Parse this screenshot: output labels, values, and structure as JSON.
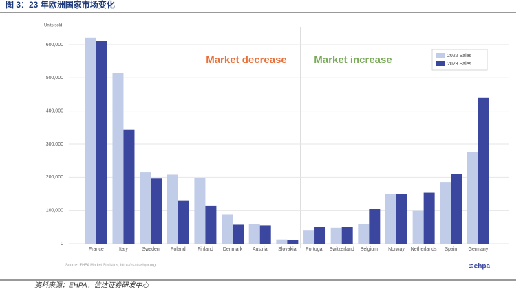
{
  "header": "图 3：23 年欧洲国家市场变化",
  "footer": "资料来源：EHPA，信达证券研发中心",
  "chart_data": {
    "type": "bar",
    "y_label": "Units sold",
    "annotations": [
      "Market decrease",
      "Market increase"
    ],
    "source": "Source: EHPA Market Statistics, https://stats.ehpa.org.",
    "logo": "≋ehpa",
    "categories": [
      "France",
      "Italy",
      "Sweden",
      "Poland",
      "Finland",
      "Denmark",
      "Austria",
      "Slovakia",
      "Portugal",
      "Switzerland",
      "Belgium",
      "Norway",
      "Netherlands",
      "Spain",
      "Germany"
    ],
    "series": [
      {
        "name": "2022 Sales",
        "color": "#c1cde8",
        "values": [
          621000,
          514000,
          215000,
          208000,
          197000,
          88000,
          60000,
          13000,
          41000,
          48000,
          60000,
          150000,
          100000,
          186000,
          276000
        ]
      },
      {
        "name": "2023 Sales",
        "color": "#3b479f",
        "values": [
          611000,
          344000,
          196000,
          129000,
          114000,
          57000,
          55000,
          12000,
          50000,
          51000,
          104000,
          151000,
          154000,
          210000,
          439000
        ]
      }
    ],
    "ylim": [
      0,
      650000
    ],
    "yticks": [
      0,
      {
        "value": 100000,
        "label": "100,000"
      },
      {
        "value": 200000,
        "label": "200,000"
      },
      {
        "value": 300000,
        "label": "300,000"
      },
      {
        "value": 400000,
        "label": "400,000"
      },
      {
        "value": 500000,
        "label": "500,000"
      },
      {
        "value": 600000,
        "label": "600,000"
      }
    ],
    "grid": true,
    "legend": "upper right"
  }
}
